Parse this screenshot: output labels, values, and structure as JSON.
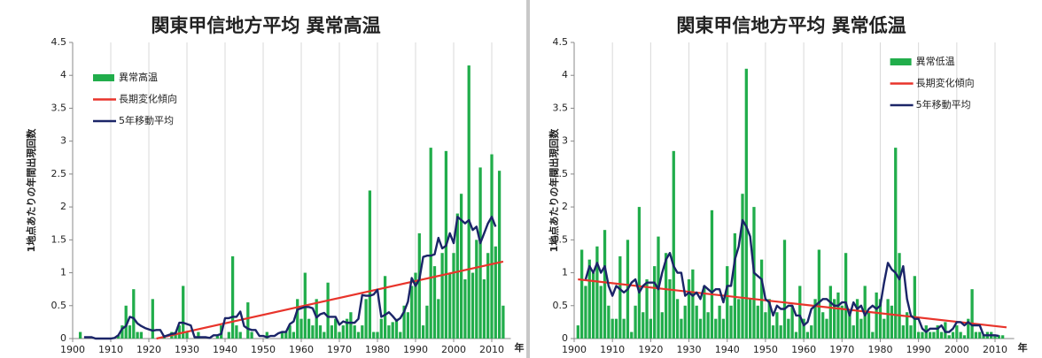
{
  "chart_data": [
    {
      "type": "bar",
      "title": "関東甲信地方平均 異常高温",
      "y_label": "1地点あたりの年間出現回数",
      "x_unit": "年",
      "xlim": [
        1900,
        2015
      ],
      "xticks": [
        1900,
        1910,
        1920,
        1930,
        1940,
        1950,
        1960,
        1970,
        1980,
        1990,
        2000,
        2010
      ],
      "ylim": [
        0,
        4.5
      ],
      "yticks": [
        0,
        0.5,
        1,
        1.5,
        2,
        2.5,
        3,
        3.5,
        4,
        4.5
      ],
      "grid": "x",
      "legend": "upper left",
      "x": [
        1901,
        1902,
        1903,
        1904,
        1905,
        1906,
        1907,
        1908,
        1909,
        1910,
        1911,
        1912,
        1913,
        1914,
        1915,
        1916,
        1917,
        1918,
        1919,
        1920,
        1921,
        1922,
        1923,
        1924,
        1925,
        1926,
        1927,
        1928,
        1929,
        1930,
        1931,
        1932,
        1933,
        1934,
        1935,
        1936,
        1937,
        1938,
        1939,
        1940,
        1941,
        1942,
        1943,
        1944,
        1945,
        1946,
        1947,
        1948,
        1949,
        1950,
        1951,
        1952,
        1953,
        1954,
        1955,
        1956,
        1957,
        1958,
        1959,
        1960,
        1961,
        1962,
        1963,
        1964,
        1965,
        1966,
        1967,
        1968,
        1969,
        1970,
        1971,
        1972,
        1973,
        1974,
        1975,
        1976,
        1977,
        1978,
        1979,
        1980,
        1981,
        1982,
        1983,
        1984,
        1985,
        1986,
        1987,
        1988,
        1989,
        1990,
        1991,
        1992,
        1993,
        1994,
        1995,
        1996,
        1997,
        1998,
        1999,
        2000,
        2001,
        2002,
        2003,
        2004,
        2005,
        2006,
        2007,
        2008,
        2009,
        2010,
        2011,
        2012,
        2013
      ],
      "series": [
        {
          "name": "異常高温",
          "type": "bar",
          "color": "#21ad4b",
          "values": [
            0,
            0.1,
            0,
            0,
            0,
            0,
            0,
            0,
            0,
            0,
            0,
            0.05,
            0.2,
            0.5,
            0.2,
            0.75,
            0.1,
            0.1,
            0,
            0,
            0.6,
            0,
            0,
            0.05,
            0,
            0.1,
            0.1,
            0.2,
            0.8,
            0.1,
            0,
            0,
            0.1,
            0,
            0,
            0,
            0,
            0.05,
            0.2,
            0,
            0.1,
            1.25,
            0.2,
            0.1,
            0,
            0.55,
            0.1,
            0,
            0,
            0,
            0.1,
            0,
            0,
            0,
            0.1,
            0.1,
            0.2,
            0.1,
            0.6,
            0.3,
            1.0,
            0.3,
            0.2,
            0.6,
            0.2,
            0.1,
            0.85,
            0.2,
            0.3,
            0.1,
            0.2,
            0.3,
            0.4,
            0.2,
            0.1,
            0.2,
            0.6,
            2.25,
            0.1,
            0.1,
            0.3,
            0.95,
            0.2,
            0.25,
            0.3,
            0.1,
            0.5,
            0.4,
            0.8,
            1.0,
            1.6,
            0.2,
            0.5,
            2.9,
            1.1,
            0.6,
            1.3,
            2.85,
            1.0,
            1.3,
            1.9,
            2.2,
            0.9,
            4.15,
            1.0,
            1.5,
            2.6,
            0.9,
            1.3,
            2.8,
            1.4,
            2.55,
            0.5
          ]
        },
        {
          "name": "長期変化傾向",
          "type": "line",
          "color": "#e8342b",
          "x": [
            1922,
            2013
          ],
          "values": [
            0,
            1.17
          ]
        },
        {
          "name": "5年移動平均",
          "type": "line",
          "color": "#1b2568",
          "values": [
            null,
            null,
            0.02,
            0.02,
            0.02,
            0,
            0,
            0,
            0,
            0,
            0.01,
            0.05,
            0.15,
            0.19,
            0.33,
            0.31,
            0.23,
            0.19,
            0.16,
            0.14,
            0.12,
            0.13,
            0.13,
            0.03,
            0.05,
            0.07,
            0.08,
            0.24,
            0.24,
            0.22,
            0.2,
            0.02,
            0.02,
            0.02,
            0.02,
            0.01,
            0.05,
            0.05,
            0.07,
            0.31,
            0.31,
            0.33,
            0.33,
            0.41,
            0.19,
            0.15,
            0.13,
            0.13,
            0.04,
            0.04,
            0.02,
            0.04,
            0.04,
            0.08,
            0.1,
            0.1,
            0.22,
            0.26,
            0.44,
            0.46,
            0.48,
            0.48,
            0.46,
            0.32,
            0.37,
            0.39,
            0.33,
            0.33,
            0.33,
            0.21,
            0.26,
            0.24,
            0.24,
            0.24,
            0.3,
            0.66,
            0.65,
            0.65,
            0.67,
            0.74,
            0.33,
            0.36,
            0.4,
            0.34,
            0.27,
            0.31,
            0.41,
            0.56,
            0.92,
            0.8,
            0.9,
            1.24,
            1.26,
            1.26,
            1.28,
            1.53,
            1.37,
            1.41,
            1.6,
            1.45,
            1.85,
            1.8,
            1.75,
            1.8,
            1.65,
            1.7,
            1.45,
            1.6,
            1.75,
            1.85,
            1.7,
            null,
            null
          ]
        }
      ]
    },
    {
      "type": "bar",
      "title": "関東甲信地方平均 異常低温",
      "y_label": "1地点あたりの年間出現回数",
      "x_unit": "年",
      "xlim": [
        1900,
        2015
      ],
      "xticks": [
        1900,
        1910,
        1920,
        1930,
        1940,
        1950,
        1960,
        1970,
        1980,
        1990,
        2000,
        2010
      ],
      "ylim": [
        0,
        4.5
      ],
      "yticks": [
        0,
        0.5,
        1,
        1.5,
        2,
        2.5,
        3,
        3.5,
        4,
        4.5
      ],
      "grid": "x",
      "legend": "upper right",
      "x": [
        1901,
        1902,
        1903,
        1904,
        1905,
        1906,
        1907,
        1908,
        1909,
        1910,
        1911,
        1912,
        1913,
        1914,
        1915,
        1916,
        1917,
        1918,
        1919,
        1920,
        1921,
        1922,
        1923,
        1924,
        1925,
        1926,
        1927,
        1928,
        1929,
        1930,
        1931,
        1932,
        1933,
        1934,
        1935,
        1936,
        1937,
        1938,
        1939,
        1940,
        1941,
        1942,
        1943,
        1944,
        1945,
        1946,
        1947,
        1948,
        1949,
        1950,
        1951,
        1952,
        1953,
        1954,
        1955,
        1956,
        1957,
        1958,
        1959,
        1960,
        1961,
        1962,
        1963,
        1964,
        1965,
        1966,
        1967,
        1968,
        1969,
        1970,
        1971,
        1972,
        1973,
        1974,
        1975,
        1976,
        1977,
        1978,
        1979,
        1980,
        1981,
        1982,
        1983,
        1984,
        1985,
        1986,
        1987,
        1988,
        1989,
        1990,
        1991,
        1992,
        1993,
        1994,
        1995,
        1996,
        1997,
        1998,
        1999,
        2000,
        2001,
        2002,
        2003,
        2004,
        2005,
        2006,
        2007,
        2008,
        2009,
        2010,
        2011,
        2012,
        2013
      ],
      "series": [
        {
          "name": "異常低温",
          "type": "bar",
          "color": "#21ad4b",
          "values": [
            0.2,
            1.35,
            0.8,
            1.2,
            1.0,
            1.4,
            0.8,
            1.65,
            0.5,
            0.3,
            0.3,
            1.25,
            0.3,
            1.5,
            0.1,
            0.5,
            2.0,
            0.4,
            0.9,
            0.3,
            1.1,
            1.55,
            0.4,
            1.3,
            0.9,
            2.85,
            0.6,
            0.3,
            0.5,
            0.9,
            1.05,
            0.5,
            0.3,
            0.8,
            0.4,
            1.95,
            0.3,
            0.5,
            0.3,
            1.1,
            0.5,
            1.6,
            0.6,
            2.2,
            4.1,
            0.6,
            2.0,
            0.5,
            1.2,
            0.4,
            0.6,
            0.2,
            0.4,
            0.2,
            1.5,
            0.3,
            0.5,
            0.1,
            0.8,
            0.3,
            0.1,
            0.2,
            0.6,
            1.35,
            0.4,
            0.3,
            0.8,
            0.6,
            0.7,
            0.5,
            1.3,
            0.4,
            0.2,
            0.6,
            0.3,
            0.8,
            0.4,
            0.1,
            0.7,
            0.6,
            0.3,
            0.6,
            0.5,
            2.9,
            1.3,
            0.2,
            0.4,
            0.2,
            0.95,
            0.1,
            0.1,
            0.2,
            0.1,
            0.1,
            0.2,
            0.1,
            0.25,
            0.05,
            0.1,
            0.2,
            0.1,
            0.05,
            0.3,
            0.75,
            0.1,
            0.1,
            0.05,
            0.1,
            0.1,
            0.05,
            0.05,
            0.05,
            0
          ]
        },
        {
          "name": "長期変化傾向",
          "type": "line",
          "color": "#e8342b",
          "x": [
            1901,
            2013
          ],
          "values": [
            0.9,
            0.17
          ]
        },
        {
          "name": "5年移動平均",
          "type": "line",
          "color": "#1b2568",
          "values": [
            null,
            null,
            0.9,
            1.1,
            1.0,
            1.15,
            1.0,
            1.1,
            0.8,
            0.65,
            0.8,
            0.75,
            0.7,
            0.75,
            0.85,
            0.9,
            0.7,
            0.8,
            0.85,
            0.85,
            0.85,
            0.75,
            1.0,
            1.2,
            1.3,
            1.1,
            1.0,
            1.0,
            0.65,
            0.7,
            0.65,
            0.7,
            0.6,
            0.8,
            0.75,
            0.7,
            0.75,
            0.75,
            0.55,
            0.8,
            0.8,
            1.2,
            1.4,
            1.8,
            1.7,
            1.55,
            1.0,
            0.95,
            0.9,
            0.6,
            0.55,
            0.35,
            0.5,
            0.45,
            0.45,
            0.5,
            0.5,
            0.35,
            0.35,
            0.2,
            0.25,
            0.45,
            0.5,
            0.55,
            0.6,
            0.6,
            0.55,
            0.5,
            0.5,
            0.55,
            0.55,
            0.35,
            0.55,
            0.45,
            0.5,
            0.35,
            0.45,
            0.5,
            0.45,
            0.5,
            0.85,
            1.15,
            1.05,
            1.0,
            0.9,
            1.1,
            0.6,
            0.35,
            0.3,
            0.3,
            0.15,
            0.1,
            0.15,
            0.15,
            0.15,
            0.2,
            0.1,
            0.1,
            0.15,
            0.25,
            0.25,
            0.2,
            0.25,
            0.2,
            0.2,
            0.2,
            0.05,
            0.05,
            0.05,
            0.05,
            0.04,
            null,
            null
          ]
        }
      ]
    }
  ]
}
